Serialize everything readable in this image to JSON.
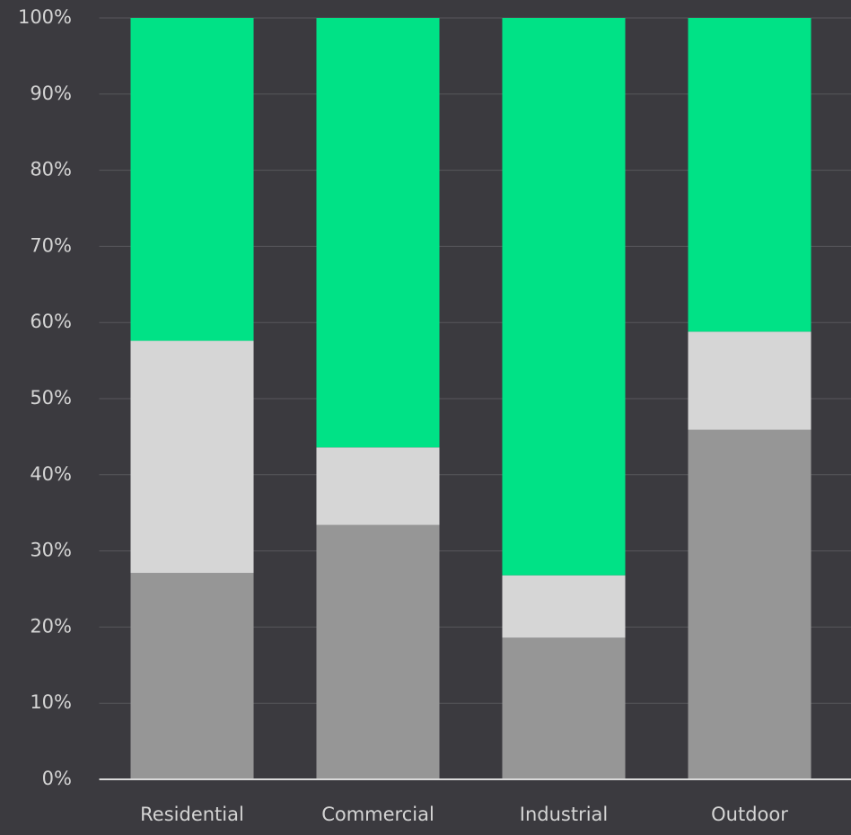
{
  "chart_data": {
    "type": "stacked_bar",
    "categories": [
      "Residential",
      "Commercial",
      "Industrial",
      "Outdoor"
    ],
    "series": [
      {
        "color": "#969696",
        "values": [
          27.1,
          33.4,
          18.6,
          45.9
        ]
      },
      {
        "color": "#d6d6d6",
        "values": [
          30.5,
          10.2,
          8.2,
          12.9
        ]
      },
      {
        "color": "#00e286",
        "values": [
          42.4,
          56.4,
          73.2,
          41.2
        ]
      }
    ],
    "ylim": [
      0,
      100
    ],
    "yticks": [
      {
        "value": 0,
        "label": "0%"
      },
      {
        "value": 10,
        "label": "10%"
      },
      {
        "value": 20,
        "label": "20%"
      },
      {
        "value": 30,
        "label": "30%"
      },
      {
        "value": 40,
        "label": "40%"
      },
      {
        "value": 50,
        "label": "50%"
      },
      {
        "value": 60,
        "label": "60%"
      },
      {
        "value": 70,
        "label": "70%"
      },
      {
        "value": 80,
        "label": "80%"
      },
      {
        "value": 90,
        "label": "90%"
      },
      {
        "value": 100,
        "label": "100%"
      }
    ],
    "grid": true
  }
}
